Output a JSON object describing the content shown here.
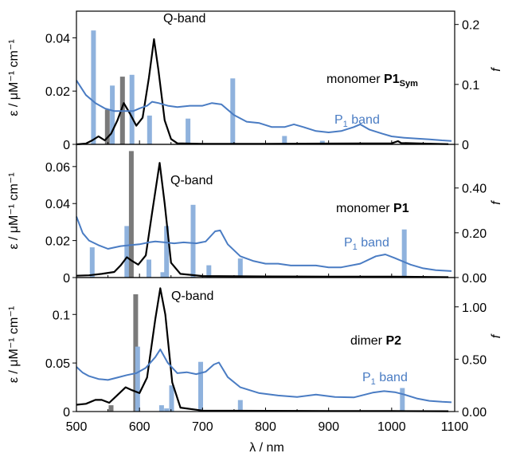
{
  "figure": {
    "xlabel": "λ / nm",
    "left_ylabel": "ε / μM⁻¹ cm⁻¹",
    "right_ylabel": "f",
    "x_ticks": [
      500,
      600,
      700,
      800,
      900,
      1000,
      1100
    ]
  },
  "colors": {
    "abs_black": "#000000",
    "abs_blue": "#4a7cc3",
    "bar_gray": "#7a7a7a",
    "bar_blue": "#8fb2dd"
  },
  "chart_data": [
    {
      "type": "line",
      "panel": "top",
      "label": "monomer P1Sym",
      "label_main": "monomer ",
      "label_bold": "P1",
      "label_sub": "Sym",
      "qband_label": "Q-band",
      "p1band_label": "P1 band",
      "xlim": [
        500,
        1100
      ],
      "ylim_left": [
        0,
        0.05
      ],
      "ylim_right": [
        0,
        0.2222
      ],
      "left_ticks": [
        {
          "v": 0,
          "t": "0"
        },
        {
          "v": 0.02,
          "t": "0.02"
        },
        {
          "v": 0.04,
          "t": "0.04"
        }
      ],
      "right_ticks": [
        {
          "v": 0,
          "t": "0"
        },
        {
          "v": 0.1,
          "t": "0.1"
        },
        {
          "v": 0.2,
          "t": "0.2"
        }
      ],
      "series": [
        {
          "color": "black",
          "points": [
            [
              500,
              0.0
            ],
            [
              515,
              0.0003
            ],
            [
              525,
              0.0015
            ],
            [
              535,
              0.003
            ],
            [
              545,
              0.0015
            ],
            [
              555,
              0.004
            ],
            [
              565,
              0.009
            ],
            [
              575,
              0.0155
            ],
            [
              585,
              0.0115
            ],
            [
              595,
              0.007
            ],
            [
              605,
              0.01
            ],
            [
              615,
              0.025
            ],
            [
              623,
              0.0395
            ],
            [
              630,
              0.028
            ],
            [
              640,
              0.009
            ],
            [
              650,
              0.002
            ],
            [
              660,
              0.0004
            ],
            [
              700,
              0.0002
            ],
            [
              800,
              0.0002
            ],
            [
              900,
              0.0003
            ],
            [
              1000,
              0.0004
            ],
            [
              1010,
              0.0012
            ],
            [
              1015,
              0.0005
            ],
            [
              1050,
              0.0003
            ],
            [
              1090,
              0.0001
            ]
          ]
        },
        {
          "color": "blue",
          "points": [
            [
              500,
              0.024
            ],
            [
              515,
              0.0185
            ],
            [
              530,
              0.0155
            ],
            [
              545,
              0.0135
            ],
            [
              560,
              0.0125
            ],
            [
              575,
              0.0125
            ],
            [
              590,
              0.0125
            ],
            [
              600,
              0.0135
            ],
            [
              612,
              0.0145
            ],
            [
              620,
              0.016
            ],
            [
              630,
              0.0155
            ],
            [
              645,
              0.0145
            ],
            [
              660,
              0.014
            ],
            [
              680,
              0.0145
            ],
            [
              700,
              0.0145
            ],
            [
              715,
              0.0155
            ],
            [
              730,
              0.015
            ],
            [
              750,
              0.011
            ],
            [
              770,
              0.0085
            ],
            [
              790,
              0.008
            ],
            [
              810,
              0.0065
            ],
            [
              830,
              0.0065
            ],
            [
              845,
              0.0075
            ],
            [
              860,
              0.0065
            ],
            [
              880,
              0.005
            ],
            [
              900,
              0.0045
            ],
            [
              920,
              0.005
            ],
            [
              940,
              0.0065
            ],
            [
              950,
              0.0075
            ],
            [
              965,
              0.0055
            ],
            [
              985,
              0.004
            ],
            [
              1000,
              0.003
            ],
            [
              1020,
              0.0025
            ],
            [
              1040,
              0.0022
            ],
            [
              1060,
              0.0019
            ],
            [
              1080,
              0.0015
            ],
            [
              1095,
              0.0013
            ]
          ]
        }
      ],
      "bars": [
        {
          "x": 527,
          "f": 0.19,
          "color": "blue"
        },
        {
          "x": 549,
          "f": 0.058,
          "color": "gray"
        },
        {
          "x": 557,
          "f": 0.098,
          "color": "blue"
        },
        {
          "x": 573,
          "f": 0.113,
          "color": "gray"
        },
        {
          "x": 588,
          "f": 0.116,
          "color": "blue"
        },
        {
          "x": 616,
          "f": 0.048,
          "color": "blue"
        },
        {
          "x": 677,
          "f": 0.043,
          "color": "blue"
        },
        {
          "x": 748,
          "f": 0.11,
          "color": "blue"
        },
        {
          "x": 830,
          "f": 0.014,
          "color": "blue"
        },
        {
          "x": 890,
          "f": 0.006,
          "color": "blue"
        }
      ]
    },
    {
      "type": "line",
      "panel": "middle",
      "label": "monomer P1",
      "label_main": "monomer ",
      "label_bold": "P1",
      "label_sub": "",
      "qband_label": "Q-band",
      "p1band_label": "P1 band",
      "xlim": [
        500,
        1100
      ],
      "ylim_left": [
        0,
        0.072
      ],
      "ylim_right": [
        0,
        0.595
      ],
      "left_ticks": [
        {
          "v": 0,
          "t": "0"
        },
        {
          "v": 0.02,
          "t": "0.02"
        },
        {
          "v": 0.04,
          "t": "0.04"
        },
        {
          "v": 0.06,
          "t": "0.06"
        }
      ],
      "right_ticks": [
        {
          "v": 0,
          "t": "0.00"
        },
        {
          "v": 0.2,
          "t": "0.20"
        },
        {
          "v": 0.4,
          "t": "0.40"
        }
      ],
      "series": [
        {
          "color": "black",
          "points": [
            [
              500,
              0.001
            ],
            [
              520,
              0.0012
            ],
            [
              540,
              0.002
            ],
            [
              560,
              0.003
            ],
            [
              570,
              0.0065
            ],
            [
              580,
              0.011
            ],
            [
              588,
              0.009
            ],
            [
              598,
              0.007
            ],
            [
              610,
              0.012
            ],
            [
              620,
              0.035
            ],
            [
              632,
              0.062
            ],
            [
              640,
              0.04
            ],
            [
              650,
              0.008
            ],
            [
              665,
              0.002
            ],
            [
              700,
              0.0008
            ],
            [
              800,
              0.0006
            ],
            [
              900,
              0.0005
            ],
            [
              1000,
              0.0005
            ],
            [
              1090,
              0.0002
            ]
          ]
        },
        {
          "color": "blue",
          "points": [
            [
              500,
              0.033
            ],
            [
              510,
              0.024
            ],
            [
              520,
              0.02
            ],
            [
              535,
              0.0175
            ],
            [
              550,
              0.0155
            ],
            [
              570,
              0.017
            ],
            [
              585,
              0.0175
            ],
            [
              600,
              0.018
            ],
            [
              615,
              0.019
            ],
            [
              625,
              0.0195
            ],
            [
              640,
              0.019
            ],
            [
              655,
              0.0185
            ],
            [
              670,
              0.019
            ],
            [
              690,
              0.0185
            ],
            [
              705,
              0.0195
            ],
            [
              720,
              0.025
            ],
            [
              728,
              0.0255
            ],
            [
              740,
              0.018
            ],
            [
              760,
              0.0115
            ],
            [
              780,
              0.009
            ],
            [
              800,
              0.0075
            ],
            [
              820,
              0.0075
            ],
            [
              840,
              0.0065
            ],
            [
              860,
              0.0065
            ],
            [
              880,
              0.0065
            ],
            [
              900,
              0.0055
            ],
            [
              920,
              0.0055
            ],
            [
              950,
              0.0075
            ],
            [
              975,
              0.0115
            ],
            [
              990,
              0.0125
            ],
            [
              1005,
              0.0105
            ],
            [
              1030,
              0.007
            ],
            [
              1050,
              0.005
            ],
            [
              1070,
              0.004
            ],
            [
              1095,
              0.0035
            ]
          ]
        }
      ],
      "bars": [
        {
          "x": 525,
          "f": 0.135,
          "color": "blue"
        },
        {
          "x": 580,
          "f": 0.23,
          "color": "blue"
        },
        {
          "x": 587,
          "f": 0.565,
          "color": "gray"
        },
        {
          "x": 615,
          "f": 0.08,
          "color": "blue"
        },
        {
          "x": 637,
          "f": 0.024,
          "color": "blue"
        },
        {
          "x": 643,
          "f": 0.23,
          "color": "blue"
        },
        {
          "x": 685,
          "f": 0.325,
          "color": "blue"
        },
        {
          "x": 710,
          "f": 0.055,
          "color": "blue"
        },
        {
          "x": 760,
          "f": 0.085,
          "color": "blue"
        },
        {
          "x": 1020,
          "f": 0.215,
          "color": "blue"
        }
      ]
    },
    {
      "type": "line",
      "panel": "bottom",
      "label": "dimer P2",
      "label_main": "dimer ",
      "label_bold": "P2",
      "label_sub": "",
      "qband_label": "Q-band",
      "p1band_label": "P1 band",
      "xlim": [
        500,
        1100
      ],
      "ylim_left": [
        0,
        0.138
      ],
      "ylim_right": [
        0,
        1.28
      ],
      "left_ticks": [
        {
          "v": 0,
          "t": "0"
        },
        {
          "v": 0.05,
          "t": "0.05"
        },
        {
          "v": 0.1,
          "t": "0.1"
        }
      ],
      "right_ticks": [
        {
          "v": 0,
          "t": "0.00"
        },
        {
          "v": 0.5,
          "t": "0.50"
        },
        {
          "v": 1.0,
          "t": "1.00"
        }
      ],
      "series": [
        {
          "color": "black",
          "points": [
            [
              500,
              0.007
            ],
            [
              515,
              0.008
            ],
            [
              530,
              0.012
            ],
            [
              540,
              0.012
            ],
            [
              552,
              0.009
            ],
            [
              565,
              0.017
            ],
            [
              578,
              0.025
            ],
            [
              588,
              0.022
            ],
            [
              600,
              0.019
            ],
            [
              612,
              0.035
            ],
            [
              625,
              0.095
            ],
            [
              633,
              0.127
            ],
            [
              641,
              0.1
            ],
            [
              652,
              0.03
            ],
            [
              665,
              0.004
            ],
            [
              700,
              0.001
            ],
            [
              800,
              0.0007
            ],
            [
              900,
              0.0006
            ],
            [
              1000,
              0.0005
            ],
            [
              1090,
              0.0003
            ]
          ]
        },
        {
          "color": "blue",
          "points": [
            [
              500,
              0.046
            ],
            [
              510,
              0.04
            ],
            [
              520,
              0.0365
            ],
            [
              535,
              0.0335
            ],
            [
              550,
              0.0325
            ],
            [
              565,
              0.035
            ],
            [
              580,
              0.0375
            ],
            [
              595,
              0.0395
            ],
            [
              610,
              0.045
            ],
            [
              625,
              0.056
            ],
            [
              633,
              0.064
            ],
            [
              645,
              0.05
            ],
            [
              660,
              0.0395
            ],
            [
              675,
              0.0405
            ],
            [
              690,
              0.0385
            ],
            [
              705,
              0.041
            ],
            [
              718,
              0.0485
            ],
            [
              726,
              0.0505
            ],
            [
              740,
              0.0355
            ],
            [
              760,
              0.025
            ],
            [
              790,
              0.019
            ],
            [
              820,
              0.0165
            ],
            [
              850,
              0.015
            ],
            [
              880,
              0.0175
            ],
            [
              910,
              0.015
            ],
            [
              940,
              0.0145
            ],
            [
              970,
              0.0195
            ],
            [
              988,
              0.021
            ],
            [
              1005,
              0.02
            ],
            [
              1020,
              0.0175
            ],
            [
              1040,
              0.0135
            ],
            [
              1060,
              0.011
            ],
            [
              1080,
              0.01
            ],
            [
              1095,
              0.0095
            ]
          ]
        }
      ],
      "bars": [
        {
          "x": 555,
          "f": 0.06,
          "color": "gray"
        },
        {
          "x": 594,
          "f": 1.12,
          "color": "gray"
        },
        {
          "x": 597,
          "f": 0.62,
          "color": "blue"
        },
        {
          "x": 635,
          "f": 0.06,
          "color": "blue"
        },
        {
          "x": 643,
          "f": 0.03,
          "color": "blue"
        },
        {
          "x": 651,
          "f": 0.25,
          "color": "blue"
        },
        {
          "x": 697,
          "f": 0.475,
          "color": "blue"
        },
        {
          "x": 760,
          "f": 0.11,
          "color": "blue"
        },
        {
          "x": 1017,
          "f": 0.225,
          "color": "blue"
        }
      ]
    }
  ]
}
